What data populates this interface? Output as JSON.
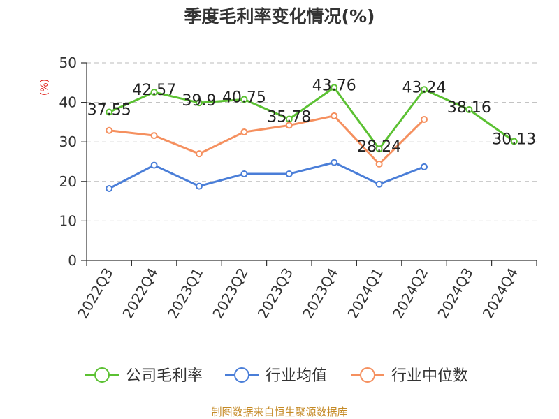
{
  "chart_data": {
    "type": "line",
    "title": "季度毛利率变化情况(%)",
    "ylabel": "(%)",
    "ylim": [
      0,
      50
    ],
    "yticks": [
      0,
      10,
      20,
      30,
      40,
      50
    ],
    "categories": [
      "2022Q3",
      "2022Q4",
      "2023Q1",
      "2023Q2",
      "2023Q3",
      "2023Q4",
      "2024Q1",
      "2024Q2",
      "2024Q3",
      "2024Q4"
    ],
    "series": [
      {
        "name": "公司毛利率",
        "color": "#5bc132",
        "values": [
          37.55,
          42.57,
          39.9,
          40.75,
          35.78,
          43.76,
          28.24,
          43.24,
          38.16,
          30.13
        ],
        "labels": true
      },
      {
        "name": "行业均值",
        "color": "#4a7ed8",
        "values": [
          18.2,
          24.1,
          18.8,
          21.9,
          21.9,
          24.8,
          19.3,
          23.7,
          null,
          null
        ],
        "labels": false
      },
      {
        "name": "行业中位数",
        "color": "#f5905f",
        "values": [
          32.9,
          31.6,
          27.0,
          32.5,
          34.2,
          36.6,
          24.4,
          35.7,
          null,
          null
        ],
        "labels": false
      }
    ],
    "grid": true,
    "legend_position": "bottom",
    "source": "制图数据来自恒生聚源数据库"
  }
}
